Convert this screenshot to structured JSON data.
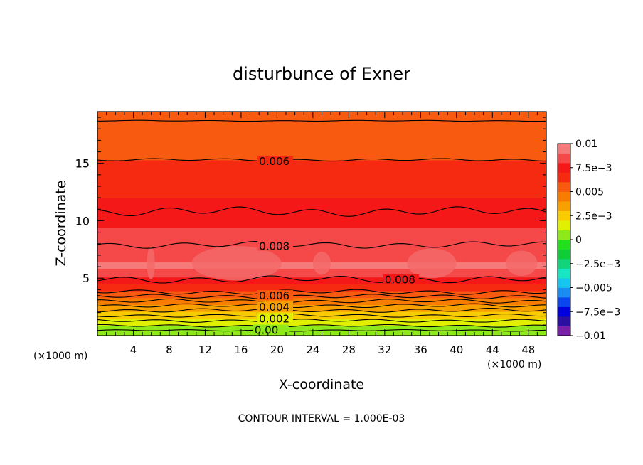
{
  "chart_data": {
    "type": "contour",
    "title": "disturbunce of Exner",
    "xlabel": "X-coordinate",
    "ylabel": "Z-coordinate",
    "x_unit_left": "(×1000 m)",
    "x_unit_right": "(×1000 m)",
    "footer": "CONTOUR INTERVAL = 1.000E-03",
    "xlim": [
      0,
      50
    ],
    "ylim": [
      0,
      19.5
    ],
    "x_ticks": [
      4,
      8,
      12,
      16,
      20,
      24,
      28,
      32,
      36,
      40,
      44,
      48
    ],
    "x_tick_labels": [
      "4",
      "8",
      "12",
      "16",
      "20",
      "24",
      "28",
      "32",
      "36",
      "40",
      "44",
      "48"
    ],
    "y_ticks": [
      5,
      10,
      15
    ],
    "y_tick_labels": [
      "5",
      "10",
      "15"
    ],
    "contour_interval": 0.001,
    "contour_labels": [
      {
        "text": "0.006",
        "x": 18,
        "z": 15.1
      },
      {
        "text": "0.008",
        "x": 18,
        "z": 7.7
      },
      {
        "text": "0.008",
        "x": 32,
        "z": 4.8
      },
      {
        "text": "0.006",
        "x": 18,
        "z": 3.4
      },
      {
        "text": "0.004",
        "x": 18,
        "z": 2.4
      },
      {
        "text": "0.002",
        "x": 18,
        "z": 1.4
      },
      {
        "text": "0.00",
        "x": 17.5,
        "z": 0.4
      }
    ],
    "profile": [
      {
        "z": 0.0,
        "value": 0.0
      },
      {
        "z": 0.6,
        "value": 0.0005
      },
      {
        "z": 1.2,
        "value": 0.0015
      },
      {
        "z": 1.8,
        "value": 0.0025
      },
      {
        "z": 2.4,
        "value": 0.0035
      },
      {
        "z": 3.0,
        "value": 0.0045
      },
      {
        "z": 3.6,
        "value": 0.0055
      },
      {
        "z": 4.2,
        "value": 0.0065
      },
      {
        "z": 4.8,
        "value": 0.0075
      },
      {
        "z": 6.0,
        "value": 0.0092
      },
      {
        "z": 7.8,
        "value": 0.0085
      },
      {
        "z": 11.0,
        "value": 0.0075
      },
      {
        "z": 13.0,
        "value": 0.0065
      },
      {
        "z": 15.3,
        "value": 0.006
      },
      {
        "z": 17.5,
        "value": 0.0055
      },
      {
        "z": 19.5,
        "value": 0.005
      }
    ],
    "colorbar": {
      "min": -0.01,
      "max": 0.01,
      "tick_labels": [
        "0.01",
        "7.5e−3",
        "0.005",
        "2.5e−3",
        "0",
        "−2.5e−3",
        "−0.005",
        "−7.5e−3",
        "−0.01"
      ],
      "tick_values": [
        0.01,
        0.0075,
        0.005,
        0.0025,
        0,
        -0.0025,
        -0.005,
        -0.0075,
        -0.01
      ],
      "colors_bottom_to_top": [
        "#7a1fa8",
        "#2a0fa0",
        "#0000dd",
        "#0a45ee",
        "#1a8cf2",
        "#16c6ee",
        "#18e6c2",
        "#12d47a",
        "#10cc36",
        "#23e01c",
        "#8fe81a",
        "#e0f000",
        "#f8cc00",
        "#f8a000",
        "#f87c00",
        "#f85a10",
        "#f52a10",
        "#f51818",
        "#f54848",
        "#f57a7a"
      ]
    }
  }
}
